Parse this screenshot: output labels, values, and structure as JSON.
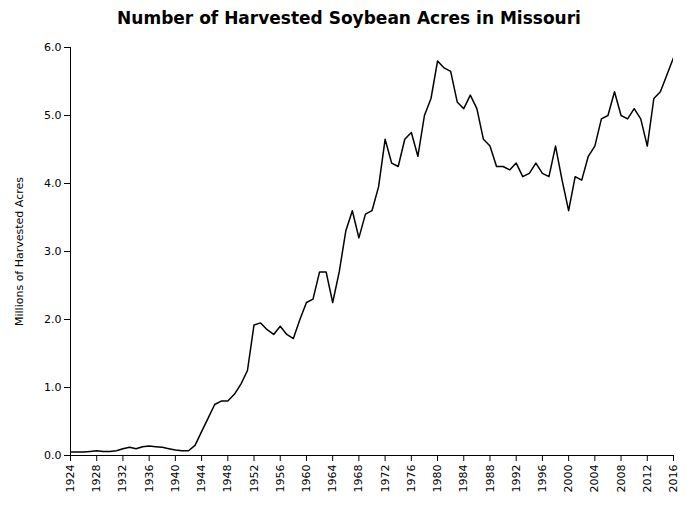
{
  "chart_data": {
    "type": "line",
    "title": "Number of Harvested Soybean Acres in Missouri",
    "ylabel": "Millions of Harvested Acres",
    "x": [
      1924,
      1925,
      1926,
      1927,
      1928,
      1929,
      1930,
      1931,
      1932,
      1933,
      1934,
      1935,
      1936,
      1937,
      1938,
      1939,
      1940,
      1941,
      1942,
      1943,
      1944,
      1945,
      1946,
      1947,
      1948,
      1949,
      1950,
      1951,
      1952,
      1953,
      1954,
      1955,
      1956,
      1957,
      1958,
      1959,
      1960,
      1961,
      1962,
      1963,
      1964,
      1965,
      1966,
      1967,
      1968,
      1969,
      1970,
      1971,
      1972,
      1973,
      1974,
      1975,
      1976,
      1977,
      1978,
      1979,
      1980,
      1981,
      1982,
      1983,
      1984,
      1985,
      1986,
      1987,
      1988,
      1989,
      1990,
      1991,
      1992,
      1993,
      1994,
      1995,
      1996,
      1997,
      1998,
      1999,
      2000,
      2001,
      2002,
      2003,
      2004,
      2005,
      2006,
      2007,
      2008,
      2009,
      2010,
      2011,
      2012,
      2013,
      2014,
      2015,
      2016
    ],
    "values": [
      0.05,
      0.05,
      0.05,
      0.06,
      0.07,
      0.06,
      0.06,
      0.07,
      0.1,
      0.12,
      0.1,
      0.13,
      0.14,
      0.13,
      0.12,
      0.1,
      0.08,
      0.07,
      0.07,
      0.15,
      0.35,
      0.55,
      0.75,
      0.8,
      0.8,
      0.9,
      1.05,
      1.25,
      1.92,
      1.95,
      1.85,
      1.78,
      1.9,
      1.78,
      1.72,
      2.0,
      2.25,
      2.3,
      2.7,
      2.7,
      2.25,
      2.7,
      3.3,
      3.6,
      3.2,
      3.55,
      3.6,
      3.95,
      4.65,
      4.3,
      4.25,
      4.65,
      4.75,
      4.4,
      5.0,
      5.25,
      5.8,
      5.7,
      5.65,
      5.2,
      5.1,
      5.3,
      5.1,
      4.65,
      4.55,
      4.25,
      4.25,
      4.2,
      4.3,
      4.1,
      4.15,
      4.3,
      4.15,
      4.1,
      4.55,
      4.05,
      3.6,
      4.1,
      4.05,
      4.4,
      4.55,
      4.95,
      5.0,
      5.35,
      5.0,
      4.95,
      5.1,
      4.95,
      4.55,
      5.25,
      5.35,
      5.6,
      5.85
    ],
    "color": "#000000",
    "xlim": [
      1924,
      2016
    ],
    "xticks": [
      1924,
      1928,
      1932,
      1936,
      1940,
      1944,
      1948,
      1952,
      1956,
      1960,
      1964,
      1968,
      1972,
      1976,
      1980,
      1984,
      1988,
      1992,
      1996,
      2000,
      2004,
      2008,
      2012,
      2016
    ],
    "ylim": [
      0.0,
      6.0
    ],
    "yticks": [
      {
        "value": 0.0,
        "label": "0.0"
      },
      {
        "value": 1.0,
        "label": "1.0"
      },
      {
        "value": 2.0,
        "label": "2.0"
      },
      {
        "value": 3.0,
        "label": "3.0"
      },
      {
        "value": 4.0,
        "label": "4.0"
      },
      {
        "value": 5.0,
        "label": "5.0"
      },
      {
        "value": 6.0,
        "label": "6.0"
      }
    ],
    "grid": false
  }
}
